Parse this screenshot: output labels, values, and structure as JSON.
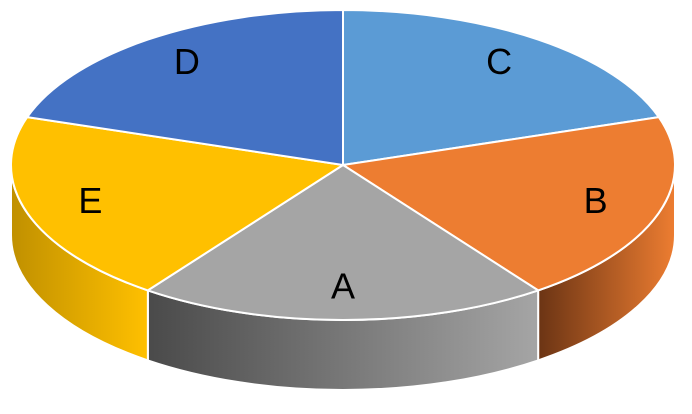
{
  "chart_data": {
    "type": "pie3d",
    "categories": [
      "C",
      "B",
      "A",
      "E",
      "D"
    ],
    "values": [
      20,
      20,
      20,
      20,
      20
    ],
    "colors": [
      "#5b9bd5",
      "#ed7d31",
      "#a5a5a5",
      "#ffc000",
      "#4472c4"
    ],
    "side_colors": [
      "#2e5f8c",
      "#6b3414",
      "#4a4a4a",
      "#c09000",
      "#2a4a80"
    ]
  }
}
